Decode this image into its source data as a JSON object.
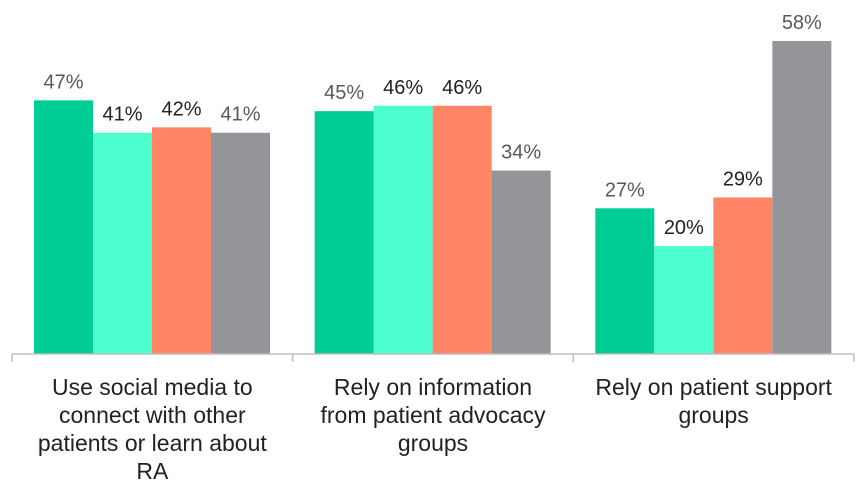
{
  "chart_data": {
    "type": "bar",
    "categories": [
      "Use social media to connect with other patients or learn about RA",
      "Rely on information from patient advocacy groups",
      "Rely on patient support groups"
    ],
    "category_lines": [
      [
        "Use social media to",
        "connect with other",
        "patients or learn about",
        "RA"
      ],
      [
        "Rely on information",
        "from patient advocacy",
        "groups"
      ],
      [
        "Rely on patient support",
        "groups"
      ]
    ],
    "series": [
      {
        "values": [
          47,
          45,
          27
        ],
        "labels": [
          "47%",
          "45%",
          "27%"
        ],
        "color": "#00cc96",
        "label_color": "#595959"
      },
      {
        "values": [
          41,
          46,
          20
        ],
        "labels": [
          "41%",
          "46%",
          "20%"
        ],
        "color": "#4dffcf",
        "label_color": "#222222"
      },
      {
        "values": [
          42,
          46,
          29
        ],
        "labels": [
          "42%",
          "46%",
          "29%"
        ],
        "color": "#ff8566",
        "label_color": "#222222"
      },
      {
        "values": [
          41,
          34,
          58
        ],
        "labels": [
          "41%",
          "34%",
          "58%"
        ],
        "color": "#939598",
        "label_color": "#595959"
      }
    ],
    "title": "",
    "xlabel": "",
    "ylabel": "",
    "ylim": [
      0,
      58
    ],
    "grid": false,
    "legend": "none",
    "axis_color": "#bfbfbf"
  }
}
